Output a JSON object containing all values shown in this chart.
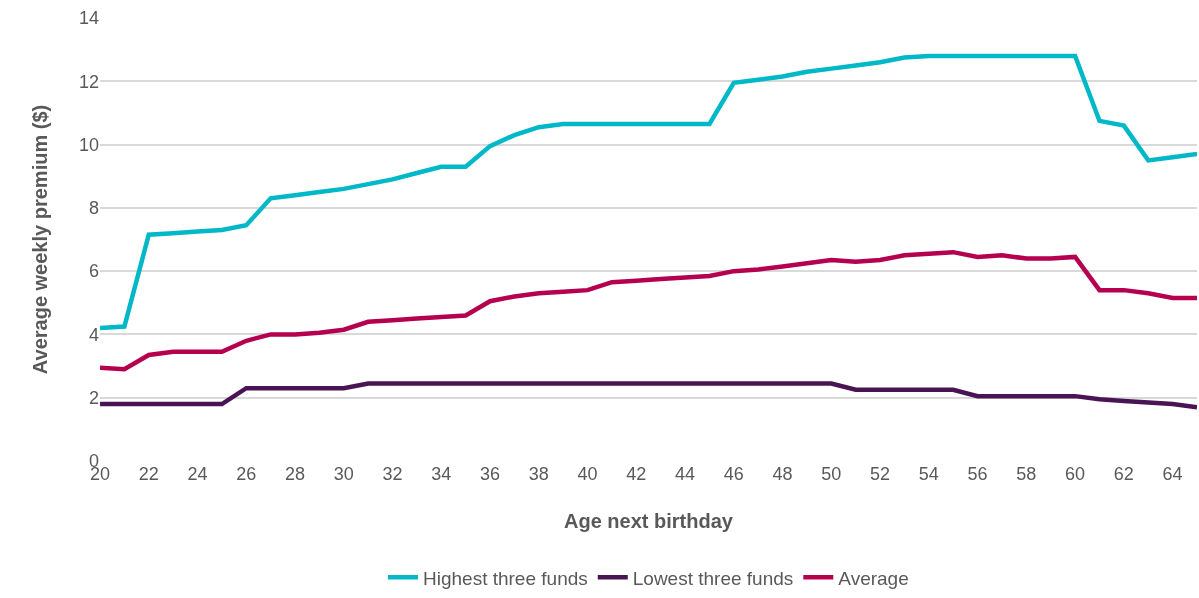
{
  "chart_data": {
    "type": "line",
    "xlabel": "Age next birthday",
    "ylabel": "Average weekly premium ($)",
    "x": [
      20,
      21,
      22,
      23,
      24,
      25,
      26,
      27,
      28,
      29,
      30,
      31,
      32,
      33,
      34,
      35,
      36,
      37,
      38,
      39,
      40,
      41,
      42,
      43,
      44,
      45,
      46,
      47,
      48,
      49,
      50,
      51,
      52,
      53,
      54,
      55,
      56,
      57,
      58,
      59,
      60,
      61,
      62,
      63,
      64,
      65
    ],
    "series": [
      {
        "name": "Highest three funds",
        "color": "#00b8c8",
        "values": [
          4.2,
          4.25,
          7.15,
          7.2,
          7.25,
          7.3,
          7.45,
          8.3,
          8.4,
          8.5,
          8.6,
          8.75,
          8.9,
          9.1,
          9.3,
          9.3,
          9.95,
          10.3,
          10.55,
          10.65,
          10.65,
          10.65,
          10.65,
          10.65,
          10.65,
          10.65,
          11.95,
          12.05,
          12.15,
          12.3,
          12.4,
          12.5,
          12.6,
          12.75,
          12.8,
          12.8,
          12.8,
          12.8,
          12.8,
          12.8,
          12.8,
          10.75,
          10.6,
          9.5,
          9.6,
          9.7
        ]
      },
      {
        "name": "Lowest three funds",
        "color": "#4a1454",
        "values": [
          1.8,
          1.8,
          1.8,
          1.8,
          1.8,
          1.8,
          2.3,
          2.3,
          2.3,
          2.3,
          2.3,
          2.45,
          2.45,
          2.45,
          2.45,
          2.45,
          2.45,
          2.45,
          2.45,
          2.45,
          2.45,
          2.45,
          2.45,
          2.45,
          2.45,
          2.45,
          2.45,
          2.45,
          2.45,
          2.45,
          2.45,
          2.25,
          2.25,
          2.25,
          2.25,
          2.25,
          2.05,
          2.05,
          2.05,
          2.05,
          2.05,
          1.95,
          1.9,
          1.85,
          1.8,
          1.7
        ]
      },
      {
        "name": "Average",
        "color": "#b4004e",
        "values": [
          2.95,
          2.9,
          3.35,
          3.45,
          3.45,
          3.45,
          3.8,
          4.0,
          4.0,
          4.05,
          4.15,
          4.4,
          4.45,
          4.5,
          4.55,
          4.6,
          5.05,
          5.2,
          5.3,
          5.35,
          5.4,
          5.65,
          5.7,
          5.75,
          5.8,
          5.85,
          6.0,
          6.05,
          6.15,
          6.25,
          6.35,
          6.3,
          6.35,
          6.5,
          6.55,
          6.6,
          6.45,
          6.5,
          6.4,
          6.4,
          6.45,
          5.4,
          5.4,
          5.3,
          5.15,
          5.15
        ]
      }
    ],
    "xlim": [
      20,
      65
    ],
    "xticks": [
      20,
      22,
      24,
      26,
      28,
      30,
      32,
      34,
      36,
      38,
      40,
      42,
      44,
      46,
      48,
      50,
      52,
      54,
      56,
      58,
      60,
      62,
      64
    ],
    "ylim": [
      0,
      14
    ],
    "yticks": [
      0,
      2,
      4,
      6,
      8,
      10,
      12,
      14
    ],
    "grid": "y",
    "legend": "bottom",
    "marker": "none",
    "line_style": "solid"
  }
}
